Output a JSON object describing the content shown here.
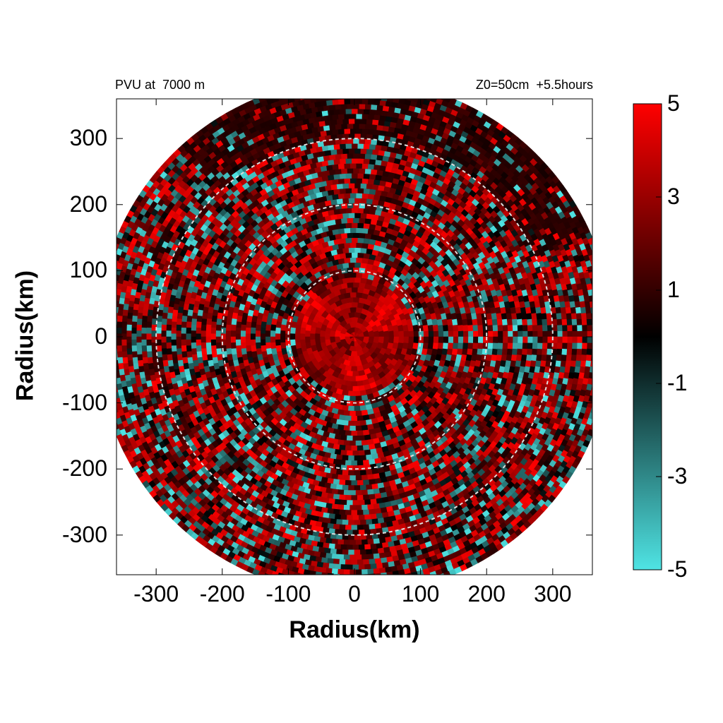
{
  "chart_data": {
    "type": "heatmap",
    "title_left": "PVU at  7000 m",
    "title_right": "Z0=50cm  +5.5hours",
    "xlabel": "Radius(km)",
    "ylabel": "Radius(km)",
    "xlim": [
      -360,
      360
    ],
    "ylim": [
      -360,
      360
    ],
    "x_ticks": [
      -300,
      -200,
      -100,
      0,
      100,
      200,
      300
    ],
    "y_ticks": [
      300,
      200,
      100,
      0,
      -100,
      -200,
      -300
    ],
    "x_tick_labels": [
      "-300",
      "-200",
      "-100",
      "0",
      "100",
      "200",
      "300"
    ],
    "y_tick_labels": [
      "300",
      "200",
      "100",
      "0",
      "-100",
      "-200",
      "-300"
    ],
    "reference_circles_km": [
      100,
      200,
      300
    ],
    "data_domain_radius_km": 390,
    "colorbar": {
      "range": [
        -5,
        5
      ],
      "tick_values": [
        5,
        3,
        1,
        -1,
        -3,
        -5
      ],
      "tick_labels": [
        "5",
        "3",
        "1",
        "-1",
        "-3",
        "-5"
      ],
      "low_color": "#4fe4e4",
      "zero_color": "#000000",
      "high_color": "#ff0000"
    },
    "field_description": "Mostly positive PVU (red/dark red) with patchy negative (cyan) bands in concentric rings; strongest positive values near center and ring ~150-200 km"
  }
}
